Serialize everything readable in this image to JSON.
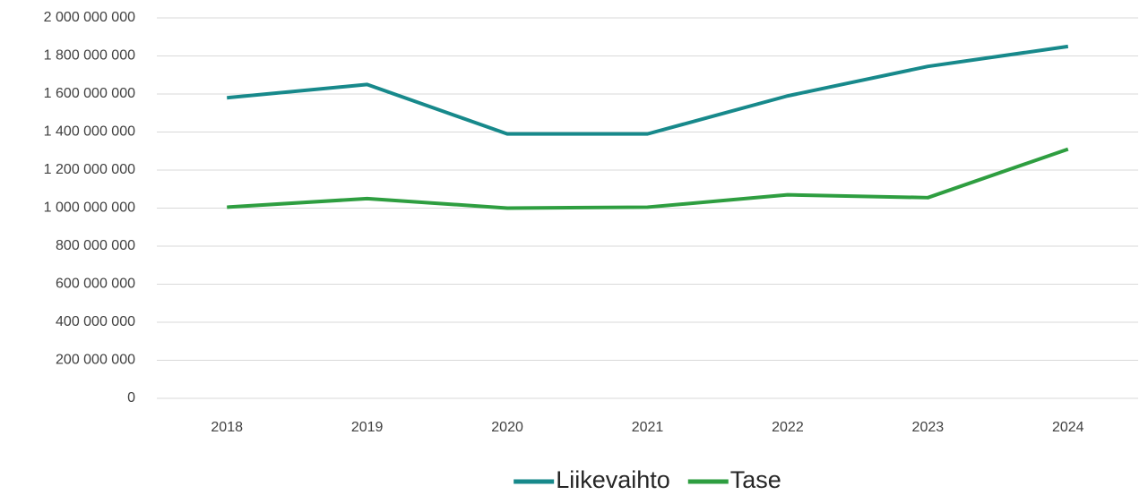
{
  "chart_data": {
    "type": "line",
    "categories": [
      "2018",
      "2019",
      "2020",
      "2021",
      "2022",
      "2023",
      "2024"
    ],
    "series": [
      {
        "name": "Liikevaihto",
        "color": "#17898b",
        "values": [
          1580000000,
          1650000000,
          1390000000,
          1390000000,
          1590000000,
          1745000000,
          1850000000
        ]
      },
      {
        "name": "Tase",
        "color": "#2e9e40",
        "values": [
          1005000000,
          1050000000,
          1000000000,
          1005000000,
          1070000000,
          1055000000,
          1310000000
        ]
      }
    ],
    "ylim": [
      0,
      2000000000
    ],
    "yticks": [
      0,
      {
        "value": 200000000,
        "label": "200 000 000"
      },
      {
        "value": 400000000,
        "label": "400 000 000"
      },
      {
        "value": 600000000,
        "label": "600 000 000"
      },
      {
        "value": 800000000,
        "label": "800 000 000"
      },
      {
        "value": 1000000000,
        "label": "1 000 000 000"
      },
      {
        "value": 1200000000,
        "label": "1 200 000 000"
      },
      {
        "value": 1400000000,
        "label": "1 400 000 000"
      },
      {
        "value": 1600000000,
        "label": "1 600 000 000"
      },
      {
        "value": 1800000000,
        "label": "1 800 000 000"
      },
      {
        "value": 2000000000,
        "label": "2 000 000 000"
      }
    ],
    "grid": true,
    "legend": "bottom"
  }
}
